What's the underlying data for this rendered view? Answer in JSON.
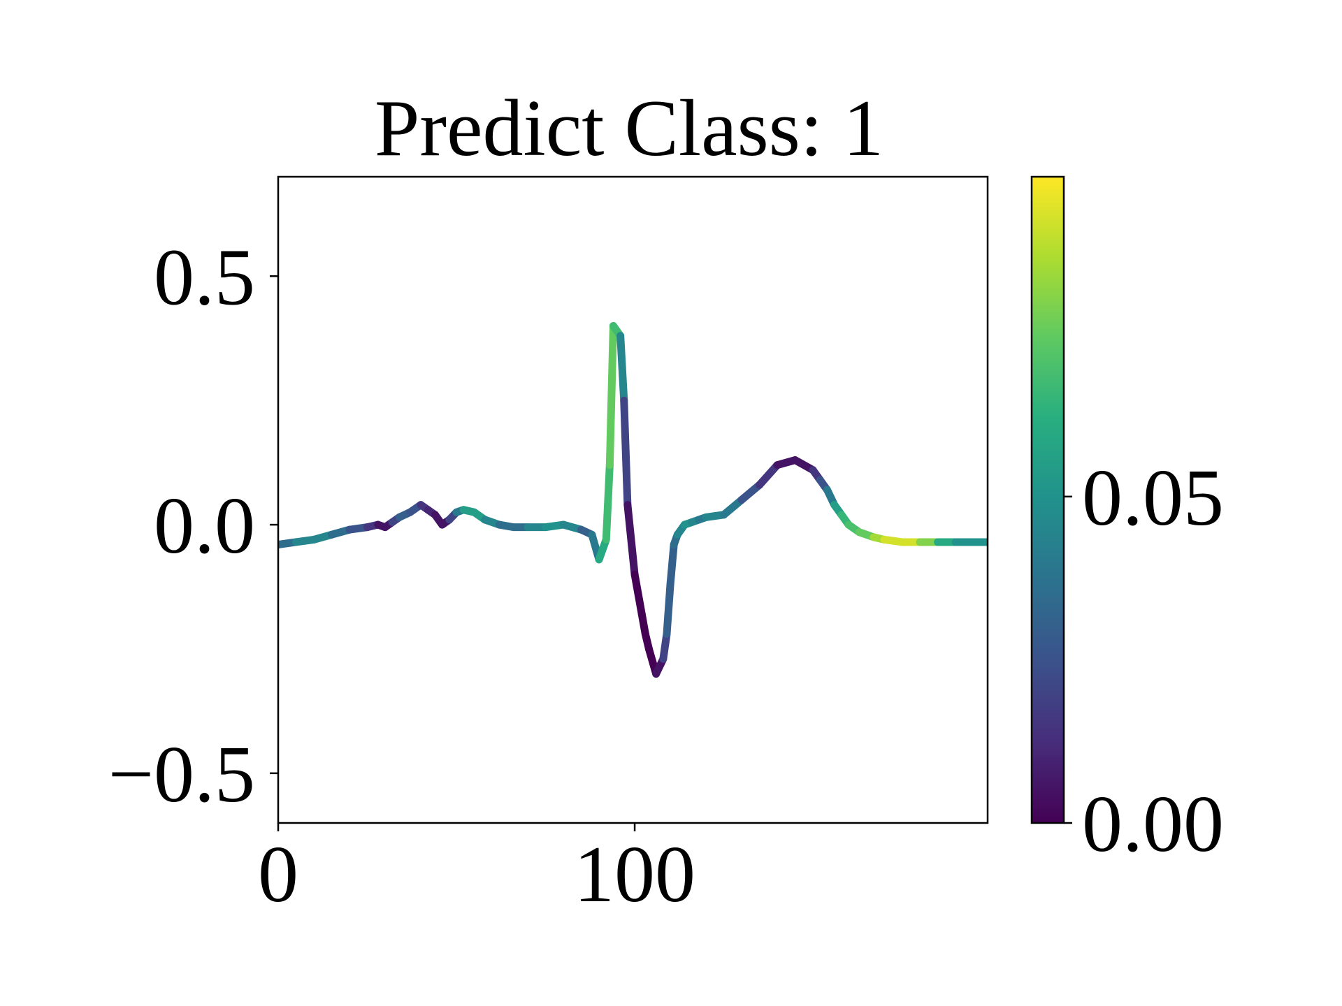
{
  "chart_data": {
    "type": "line",
    "title": "Predict Class: 1",
    "xlabel": "",
    "ylabel": "",
    "xlim": [
      0,
      199
    ],
    "ylim": [
      -0.6,
      0.7
    ],
    "xticks": [
      0,
      100
    ],
    "xtick_labels": [
      "0",
      "100"
    ],
    "yticks": [
      0.5,
      0.0,
      -0.5
    ],
    "ytick_labels": [
      "0.5",
      "0.0",
      "−0.5"
    ],
    "grid": false,
    "colormap": "viridis",
    "colorbar": {
      "range": [
        0.0,
        0.099
      ],
      "ticks": [
        0.0,
        0.05
      ],
      "tick_labels": [
        "0.00",
        "0.05"
      ]
    },
    "series": [
      {
        "x": [
          0,
          5,
          10,
          15,
          20,
          25,
          28,
          30,
          32,
          34,
          37,
          40,
          42,
          44,
          46,
          48,
          50,
          52,
          55,
          58,
          62,
          66,
          70,
          75,
          80,
          85,
          88,
          90,
          92,
          93,
          94,
          96,
          97,
          98,
          100,
          102,
          103,
          104,
          106,
          108,
          109,
          110,
          111,
          112,
          114,
          116,
          118,
          120,
          125,
          130,
          135,
          140,
          145,
          150,
          152,
          154,
          156,
          158,
          160,
          163,
          167,
          170,
          175,
          180,
          185,
          190,
          195,
          199
        ],
        "y": [
          -0.04,
          -0.035,
          -0.03,
          -0.02,
          -0.01,
          -0.005,
          0.0,
          -0.005,
          0.005,
          0.015,
          0.025,
          0.04,
          0.03,
          0.02,
          0.0,
          0.01,
          0.025,
          0.03,
          0.025,
          0.01,
          0.0,
          -0.005,
          -0.005,
          -0.005,
          0.0,
          -0.01,
          -0.02,
          -0.07,
          -0.03,
          0.12,
          0.4,
          0.38,
          0.25,
          0.04,
          -0.1,
          -0.18,
          -0.22,
          -0.25,
          -0.3,
          -0.27,
          -0.22,
          -0.12,
          -0.04,
          -0.02,
          0.0,
          0.005,
          0.01,
          0.015,
          0.02,
          0.05,
          0.08,
          0.12,
          0.13,
          0.11,
          0.09,
          0.07,
          0.04,
          0.02,
          0.0,
          -0.015,
          -0.025,
          -0.03,
          -0.035,
          -0.035,
          -0.035,
          -0.035,
          -0.035,
          -0.035
        ],
        "c": [
          0.03,
          0.04,
          0.05,
          0.04,
          0.03,
          0.02,
          0.01,
          0.0,
          0.01,
          0.03,
          0.03,
          0.02,
          0.01,
          0.01,
          0.0,
          0.01,
          0.03,
          0.05,
          0.06,
          0.05,
          0.04,
          0.03,
          0.04,
          0.05,
          0.05,
          0.04,
          0.02,
          0.06,
          0.06,
          0.075,
          0.075,
          0.06,
          0.03,
          0.01,
          0.0,
          0.0,
          0.0,
          0.0,
          0.0,
          0.01,
          0.03,
          0.03,
          0.03,
          0.04,
          0.05,
          0.05,
          0.04,
          0.04,
          0.05,
          0.03,
          0.02,
          0.01,
          0.0,
          0.01,
          0.02,
          0.03,
          0.05,
          0.06,
          0.07,
          0.07,
          0.08,
          0.09,
          0.095,
          0.09,
          0.07,
          0.05,
          0.05,
          0.05
        ]
      }
    ]
  }
}
